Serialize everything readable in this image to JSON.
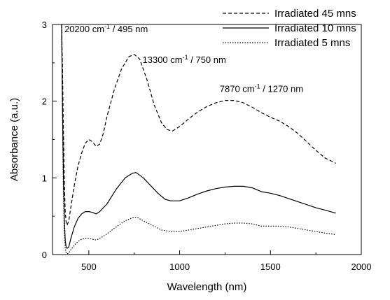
{
  "chart_data": {
    "type": "line",
    "xlabel": "Wavelength (nm)",
    "ylabel": "Absorbance (a.u.)",
    "xlim": [
      300,
      2000
    ],
    "ylim": [
      0,
      3
    ],
    "xticks": [
      500,
      1000,
      1500,
      2000
    ],
    "yticks": [
      0,
      1,
      2,
      3
    ],
    "grid": false,
    "legend_position": "top-right",
    "annotations": [
      {
        "pre": "20200 cm",
        "sup": "-1",
        "post": " / 495 nm",
        "x": 350,
        "y": 2.9
      },
      {
        "pre": "13300 cm",
        "sup": "-1",
        "post": " / 750 nm",
        "x": 780,
        "y": 2.5
      },
      {
        "pre": "7870 cm",
        "sup": "-1",
        "post": " / 1270 nm",
        "x": 1205,
        "y": 2.12
      }
    ],
    "series": [
      {
        "name": "Irradiated 45 mns",
        "style": "dashed",
        "color": "#000000",
        "points": [
          [
            350,
            3.0
          ],
          [
            355,
            2.4
          ],
          [
            360,
            1.6
          ],
          [
            365,
            0.95
          ],
          [
            370,
            0.55
          ],
          [
            375,
            0.42
          ],
          [
            380,
            0.38
          ],
          [
            390,
            0.44
          ],
          [
            400,
            0.6
          ],
          [
            420,
            0.9
          ],
          [
            440,
            1.15
          ],
          [
            460,
            1.32
          ],
          [
            480,
            1.45
          ],
          [
            500,
            1.5
          ],
          [
            520,
            1.47
          ],
          [
            540,
            1.41
          ],
          [
            560,
            1.44
          ],
          [
            580,
            1.58
          ],
          [
            600,
            1.8
          ],
          [
            640,
            2.15
          ],
          [
            680,
            2.42
          ],
          [
            720,
            2.58
          ],
          [
            750,
            2.61
          ],
          [
            780,
            2.55
          ],
          [
            820,
            2.28
          ],
          [
            860,
            1.95
          ],
          [
            900,
            1.72
          ],
          [
            930,
            1.63
          ],
          [
            960,
            1.61
          ],
          [
            1000,
            1.67
          ],
          [
            1050,
            1.77
          ],
          [
            1100,
            1.86
          ],
          [
            1150,
            1.93
          ],
          [
            1200,
            1.98
          ],
          [
            1250,
            2.01
          ],
          [
            1300,
            2.01
          ],
          [
            1350,
            1.98
          ],
          [
            1400,
            1.92
          ],
          [
            1450,
            1.85
          ],
          [
            1500,
            1.79
          ],
          [
            1550,
            1.74
          ],
          [
            1600,
            1.67
          ],
          [
            1650,
            1.58
          ],
          [
            1700,
            1.47
          ],
          [
            1750,
            1.36
          ],
          [
            1800,
            1.26
          ],
          [
            1860,
            1.19
          ]
        ]
      },
      {
        "name": "Irradiated 10 mns",
        "style": "solid",
        "color": "#000000",
        "points": [
          [
            350,
            3.0
          ],
          [
            355,
            1.9
          ],
          [
            360,
            1.0
          ],
          [
            365,
            0.45
          ],
          [
            370,
            0.18
          ],
          [
            375,
            0.1
          ],
          [
            380,
            0.08
          ],
          [
            390,
            0.1
          ],
          [
            400,
            0.2
          ],
          [
            420,
            0.36
          ],
          [
            440,
            0.47
          ],
          [
            460,
            0.53
          ],
          [
            480,
            0.56
          ],
          [
            500,
            0.56
          ],
          [
            520,
            0.55
          ],
          [
            540,
            0.53
          ],
          [
            560,
            0.56
          ],
          [
            600,
            0.66
          ],
          [
            650,
            0.85
          ],
          [
            700,
            1.0
          ],
          [
            740,
            1.06
          ],
          [
            760,
            1.07
          ],
          [
            800,
            1.0
          ],
          [
            840,
            0.9
          ],
          [
            880,
            0.8
          ],
          [
            920,
            0.72
          ],
          [
            950,
            0.7
          ],
          [
            1000,
            0.7
          ],
          [
            1050,
            0.74
          ],
          [
            1100,
            0.79
          ],
          [
            1150,
            0.83
          ],
          [
            1200,
            0.86
          ],
          [
            1250,
            0.88
          ],
          [
            1300,
            0.89
          ],
          [
            1350,
            0.89
          ],
          [
            1400,
            0.87
          ],
          [
            1450,
            0.82
          ],
          [
            1500,
            0.8
          ],
          [
            1550,
            0.77
          ],
          [
            1600,
            0.73
          ],
          [
            1650,
            0.69
          ],
          [
            1700,
            0.65
          ],
          [
            1750,
            0.61
          ],
          [
            1800,
            0.58
          ],
          [
            1860,
            0.54
          ]
        ]
      },
      {
        "name": "Irradiated 5 mns",
        "style": "dotted",
        "color": "#000000",
        "points": [
          [
            350,
            3.0
          ],
          [
            355,
            1.8
          ],
          [
            360,
            0.8
          ],
          [
            365,
            0.3
          ],
          [
            370,
            0.08
          ],
          [
            375,
            0.02
          ],
          [
            380,
            0.01
          ],
          [
            390,
            0.02
          ],
          [
            400,
            0.06
          ],
          [
            420,
            0.12
          ],
          [
            440,
            0.17
          ],
          [
            460,
            0.2
          ],
          [
            480,
            0.21
          ],
          [
            500,
            0.21
          ],
          [
            520,
            0.2
          ],
          [
            540,
            0.19
          ],
          [
            560,
            0.21
          ],
          [
            600,
            0.27
          ],
          [
            650,
            0.36
          ],
          [
            700,
            0.44
          ],
          [
            740,
            0.48
          ],
          [
            770,
            0.48
          ],
          [
            800,
            0.44
          ],
          [
            850,
            0.38
          ],
          [
            900,
            0.32
          ],
          [
            950,
            0.3
          ],
          [
            1000,
            0.3
          ],
          [
            1050,
            0.32
          ],
          [
            1100,
            0.34
          ],
          [
            1150,
            0.36
          ],
          [
            1200,
            0.38
          ],
          [
            1250,
            0.4
          ],
          [
            1300,
            0.41
          ],
          [
            1350,
            0.41
          ],
          [
            1400,
            0.4
          ],
          [
            1450,
            0.37
          ],
          [
            1500,
            0.37
          ],
          [
            1550,
            0.37
          ],
          [
            1600,
            0.36
          ],
          [
            1650,
            0.34
          ],
          [
            1700,
            0.32
          ],
          [
            1750,
            0.3
          ],
          [
            1800,
            0.28
          ],
          [
            1860,
            0.26
          ]
        ]
      }
    ]
  }
}
